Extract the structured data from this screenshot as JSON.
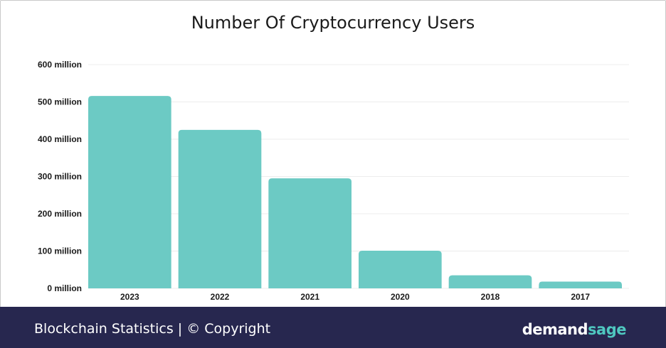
{
  "chart_data": {
    "type": "bar",
    "title": "Number Of Cryptocurrency Users",
    "categories": [
      "2023",
      "2022",
      "2021",
      "2020",
      "2018",
      "2017"
    ],
    "values": [
      516,
      425,
      295,
      101,
      35,
      18
    ],
    "units": "million",
    "ylim": [
      0,
      600
    ],
    "yticks": [
      "0 million",
      "100 million",
      "200 million",
      "300 million",
      "400 million",
      "500 million",
      "600 million"
    ],
    "xlabel": "",
    "ylabel": "",
    "grid": true,
    "bar_color": "#6ccac4",
    "grid_color": "#ececec"
  },
  "footer": {
    "left_text": "Blockchain Statistics | © Copyright",
    "brand_part1": "demand",
    "brand_part2": "sage",
    "background": "#27274f",
    "brand_accent": "#4fc8c0"
  }
}
